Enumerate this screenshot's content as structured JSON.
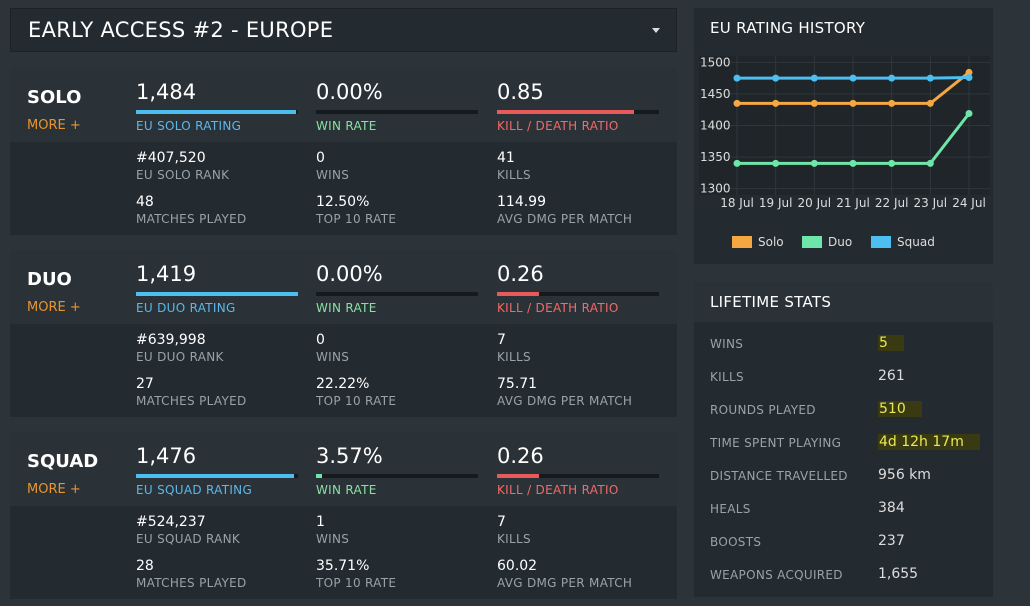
{
  "header": {
    "title": "EARLY ACCESS #2 - EUROPE"
  },
  "modes": [
    {
      "name": "SOLO",
      "more": "MORE +",
      "stats": [
        {
          "value": "1,484",
          "label": "EU SOLO RATING"
        },
        {
          "value": "0.00%",
          "label": "WIN RATE"
        },
        {
          "value": "0.85",
          "label": "KILL / DEATH RATIO"
        }
      ],
      "details": [
        {
          "value": "#407,520",
          "label": "EU SOLO RANK"
        },
        {
          "value": "0",
          "label": "WINS"
        },
        {
          "value": "41",
          "label": "KILLS"
        },
        {
          "value": "48",
          "label": "MATCHES PLAYED"
        },
        {
          "value": "12.50%",
          "label": "TOP 10 RATE"
        },
        {
          "value": "114.99",
          "label": "AVG DMG PER MATCH"
        }
      ]
    },
    {
      "name": "DUO",
      "more": "MORE +",
      "stats": [
        {
          "value": "1,419",
          "label": "EU DUO RATING"
        },
        {
          "value": "0.00%",
          "label": "WIN RATE"
        },
        {
          "value": "0.26",
          "label": "KILL / DEATH RATIO"
        }
      ],
      "details": [
        {
          "value": "#639,998",
          "label": "EU DUO RANK"
        },
        {
          "value": "0",
          "label": "WINS"
        },
        {
          "value": "7",
          "label": "KILLS"
        },
        {
          "value": "27",
          "label": "MATCHES PLAYED"
        },
        {
          "value": "22.22%",
          "label": "TOP 10 RATE"
        },
        {
          "value": "75.71",
          "label": "AVG DMG PER MATCH"
        }
      ]
    },
    {
      "name": "SQUAD",
      "more": "MORE +",
      "stats": [
        {
          "value": "1,476",
          "label": "EU SQUAD RATING"
        },
        {
          "value": "3.57%",
          "label": "WIN RATE"
        },
        {
          "value": "0.26",
          "label": "KILL / DEATH RATIO"
        }
      ],
      "details": [
        {
          "value": "#524,237",
          "label": "EU SQUAD RANK"
        },
        {
          "value": "1",
          "label": "WINS"
        },
        {
          "value": "7",
          "label": "KILLS"
        },
        {
          "value": "28",
          "label": "MATCHES PLAYED"
        },
        {
          "value": "35.71%",
          "label": "TOP 10 RATE"
        },
        {
          "value": "60.02",
          "label": "AVG DMG PER MATCH"
        }
      ]
    }
  ],
  "chart_data": {
    "type": "line",
    "title": "EU RATING HISTORY",
    "categories": [
      "18 Jul",
      "19 Jul",
      "20 Jul",
      "21 Jul",
      "22 Jul",
      "23 Jul",
      "24 Jul"
    ],
    "series": [
      {
        "name": "Solo",
        "color": "#f5a742",
        "values": [
          1435,
          1435,
          1435,
          1435,
          1435,
          1435,
          1484
        ]
      },
      {
        "name": "Duo",
        "color": "#6fe6a9",
        "values": [
          1340,
          1340,
          1340,
          1340,
          1340,
          1340,
          1419
        ]
      },
      {
        "name": "Squad",
        "color": "#4cbff0",
        "values": [
          1475,
          1475,
          1475,
          1475,
          1475,
          1475,
          1476
        ]
      }
    ],
    "ylim": [
      1290,
      1510
    ],
    "yticks": [
      1300,
      1350,
      1400,
      1450,
      1500
    ],
    "grid": true
  },
  "lifetime": {
    "title": "LIFETIME STATS",
    "rows": [
      {
        "label": "WINS",
        "value": "5"
      },
      {
        "label": "KILLS",
        "value": "261"
      },
      {
        "label": "ROUNDS PLAYED",
        "value": "510"
      },
      {
        "label": "TIME SPENT PLAYING",
        "value": "4d 12h 17m"
      },
      {
        "label": "DISTANCE TRAVELLED",
        "value": "956 km"
      },
      {
        "label": "HEALS",
        "value": "384"
      },
      {
        "label": "BOOSTS",
        "value": "237"
      },
      {
        "label": "WEAPONS ACQUIRED",
        "value": "1,655"
      }
    ]
  }
}
